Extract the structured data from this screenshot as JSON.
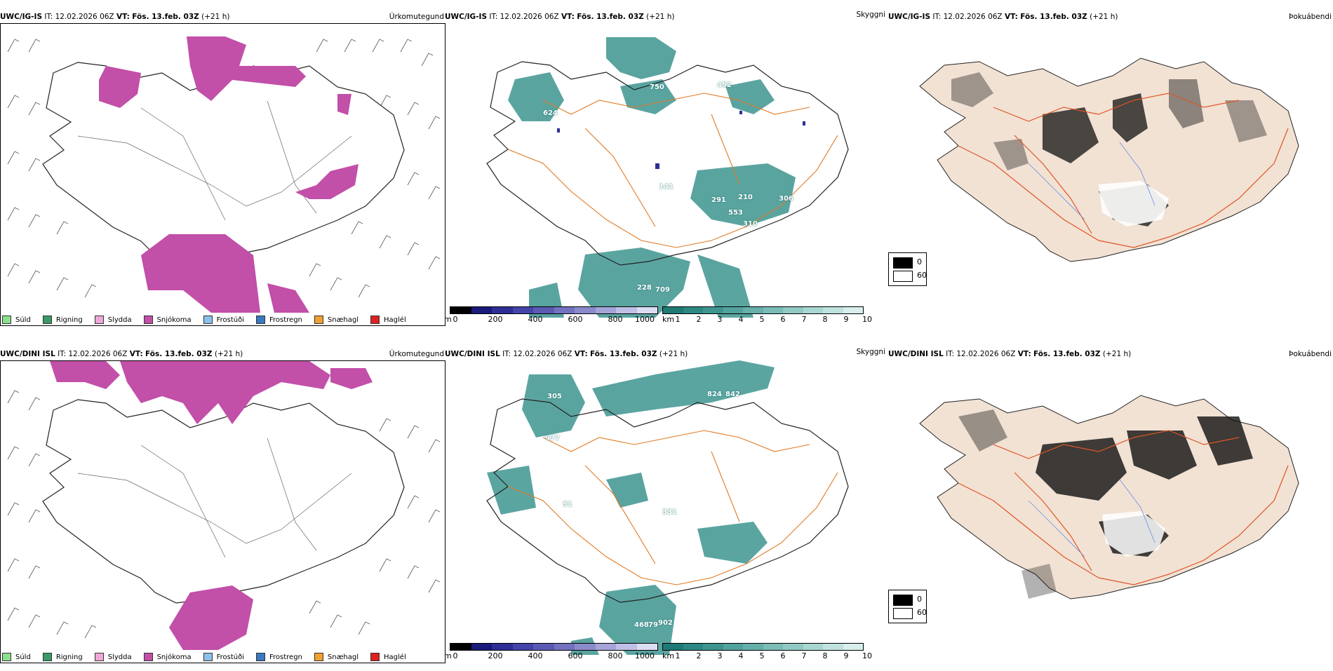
{
  "panels": {
    "precip_top": {
      "model": "UWC/IG-IS",
      "it_label": "IT:",
      "it_value": "12.02.2026 06Z",
      "vt_label": "VT:",
      "vt_value": "Fös. 13.feb. 03Z",
      "lead": "(+21 h)",
      "product": "Úrkomutegund"
    },
    "vis_top": {
      "model": "UWC/IG-IS",
      "it_label": "IT:",
      "it_value": "12.02.2026 06Z",
      "vt_label": "VT:",
      "vt_value": "Fös. 13.feb. 03Z",
      "lead": "(+21 h)",
      "product": "Skyggni"
    },
    "fog_top": {
      "model": "UWC/IG-IS",
      "it_label": "IT:",
      "it_value": "12.02.2026 06Z",
      "vt_label": "VT:",
      "vt_value": "Fös. 13.feb. 03Z",
      "lead": "(+21 h)",
      "product": "Þokuábendi"
    },
    "precip_bottom": {
      "model": "UWC/DINI ISL",
      "it_label": "IT:",
      "it_value": "12.02.2026 06Z",
      "vt_label": "VT:",
      "vt_value": "Fös. 13.feb. 03Z",
      "lead": "(+21 h)",
      "product": "Úrkomutegund"
    },
    "vis_bottom": {
      "model": "UWC/DINI ISL",
      "it_label": "IT:",
      "it_value": "12.02.2026 06Z",
      "vt_label": "VT:",
      "vt_value": "Fös. 13.feb. 03Z",
      "lead": "(+21 h)",
      "product": "Skyggni"
    },
    "fog_bottom": {
      "model": "UWC/DINI ISL",
      "it_label": "IT:",
      "it_value": "12.02.2026 06Z",
      "vt_label": "VT:",
      "vt_value": "Fös. 13.feb. 03Z",
      "lead": "(+21 h)",
      "product": "Þokuábendi"
    }
  },
  "precip_legend": [
    {
      "label": "Súld",
      "color": "#8be08b"
    },
    {
      "label": "Rigning",
      "color": "#3a9a6a"
    },
    {
      "label": "Slydda",
      "color": "#f0a8d8"
    },
    {
      "label": "Snjókoma",
      "color": "#c24fa8"
    },
    {
      "label": "Frostúði",
      "color": "#8cc0ea"
    },
    {
      "label": "Frostregn",
      "color": "#3a78c0"
    },
    {
      "label": "Snæhagl",
      "color": "#f0a030"
    },
    {
      "label": "Haglél",
      "color": "#e02020"
    }
  ],
  "height_scale": {
    "unit": "m",
    "ticks": [
      "0",
      "200",
      "400",
      "600",
      "800",
      "1000"
    ],
    "colors": [
      "#000000",
      "#1a1a7a",
      "#2e2e96",
      "#4444aa",
      "#5a5ab4",
      "#7272c0",
      "#8a8acc",
      "#a4a4d8",
      "#c0c0e6",
      "#dcdcf2"
    ]
  },
  "vis_scale": {
    "unit": "km",
    "ticks": [
      "1",
      "2",
      "3",
      "4",
      "5",
      "6",
      "7",
      "8",
      "9",
      "10"
    ],
    "colors": [
      "#1f7a76",
      "#2d8883",
      "#3e9590",
      "#52a29d",
      "#66afaa",
      "#7bbcb7",
      "#91c9c4",
      "#a8d6d1",
      "#c0e3df",
      "#d8efec"
    ]
  },
  "fog_key": {
    "values": [
      "0",
      "60"
    ],
    "colors": [
      "#000000",
      "#ffffff"
    ]
  },
  "vis_labels_top": [
    "624",
    "750",
    "452",
    "141",
    "291",
    "210",
    "306",
    "553",
    "310",
    "228",
    "709"
  ],
  "vis_labels_bottom": [
    "305",
    "977",
    "824",
    "842",
    "51",
    "331",
    "468",
    "79",
    "902"
  ]
}
